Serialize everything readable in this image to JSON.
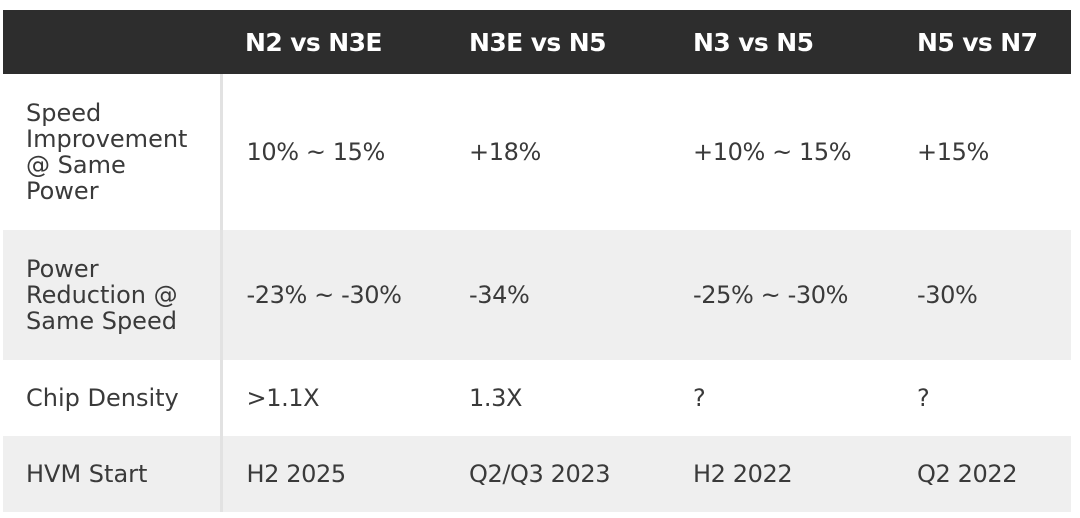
{
  "table": {
    "columns": [
      "",
      "N2 vs N3E",
      "N3E vs N5",
      "N3 vs N5",
      "N5 vs N7"
    ],
    "rows": [
      {
        "label_lines": [
          "Speed",
          "Improvement",
          "@ Same",
          "Power"
        ],
        "cells": [
          "10% ~ 15%",
          "+18%",
          "+10% ~ 15%",
          "+15%"
        ]
      },
      {
        "label_lines": [
          "Power",
          "Reduction @",
          "Same Speed"
        ],
        "cells": [
          "-23% ~ -30%",
          "-34%",
          "-25% ~ -30%",
          "-30%"
        ]
      },
      {
        "label_lines": [
          "Chip Density"
        ],
        "cells": [
          ">1.1X",
          "1.3X",
          "?",
          "?"
        ]
      },
      {
        "label_lines": [
          "HVM Start"
        ],
        "cells": [
          "H2 2025",
          "Q2/Q3 2023",
          "H2 2022",
          "Q2 2022"
        ]
      }
    ]
  },
  "colors": {
    "header_bg": "#2d2d2d",
    "header_text": "#ffffff",
    "row_alt_bg": "#efefef",
    "body_text": "#3a3a3a"
  }
}
